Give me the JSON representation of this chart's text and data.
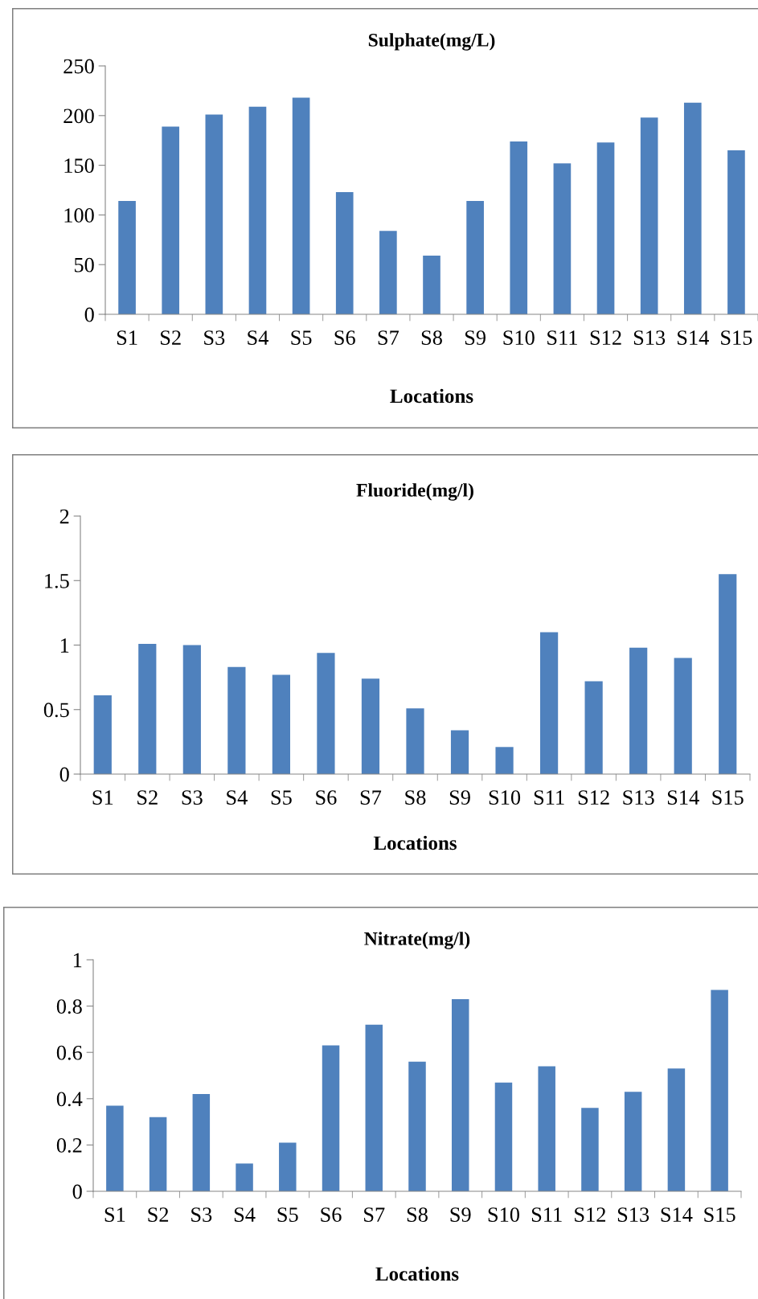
{
  "chart_data": [
    {
      "type": "bar",
      "title": "Sulphate(mg/L)",
      "xlabel": "Locations",
      "categories": [
        "S1",
        "S2",
        "S3",
        "S4",
        "S5",
        "S6",
        "S7",
        "S8",
        "S9",
        "S10",
        "S11",
        "S12",
        "S13",
        "S14",
        "S15"
      ],
      "values": [
        114,
        189,
        201,
        209,
        218,
        123,
        84,
        59,
        114,
        174,
        152,
        173,
        198,
        213,
        165
      ],
      "color": "#4f81bd",
      "ylim": [
        0,
        250
      ],
      "yticks": [
        0,
        50,
        100,
        150,
        200,
        250
      ]
    },
    {
      "type": "bar",
      "title": "Fluoride(mg/l)",
      "xlabel": "Locations",
      "categories": [
        "S1",
        "S2",
        "S3",
        "S4",
        "S5",
        "S6",
        "S7",
        "S8",
        "S9",
        "S10",
        "S11",
        "S12",
        "S13",
        "S14",
        "S15"
      ],
      "values": [
        0.61,
        1.01,
        1.0,
        0.83,
        0.77,
        0.94,
        0.74,
        0.51,
        0.34,
        0.21,
        1.1,
        0.72,
        0.98,
        0.9,
        1.55
      ],
      "color": "#4f81bd",
      "ylim": [
        0,
        2
      ],
      "yticks": [
        0,
        0.5,
        1,
        1.5,
        2
      ]
    },
    {
      "type": "bar",
      "title": "Nitrate(mg/l)",
      "xlabel": "Locations",
      "categories": [
        "S1",
        "S2",
        "S3",
        "S4",
        "S5",
        "S6",
        "S7",
        "S8",
        "S9",
        "S10",
        "S11",
        "S12",
        "S13",
        "S14",
        "S15"
      ],
      "values": [
        0.37,
        0.32,
        0.42,
        0.12,
        0.21,
        0.63,
        0.72,
        0.56,
        0.83,
        0.47,
        0.54,
        0.36,
        0.43,
        0.53,
        0.87
      ],
      "color": "#4f81bd",
      "ylim": [
        0,
        1
      ],
      "yticks": [
        0,
        0.2,
        0.4,
        0.6,
        0.8,
        1
      ]
    }
  ]
}
